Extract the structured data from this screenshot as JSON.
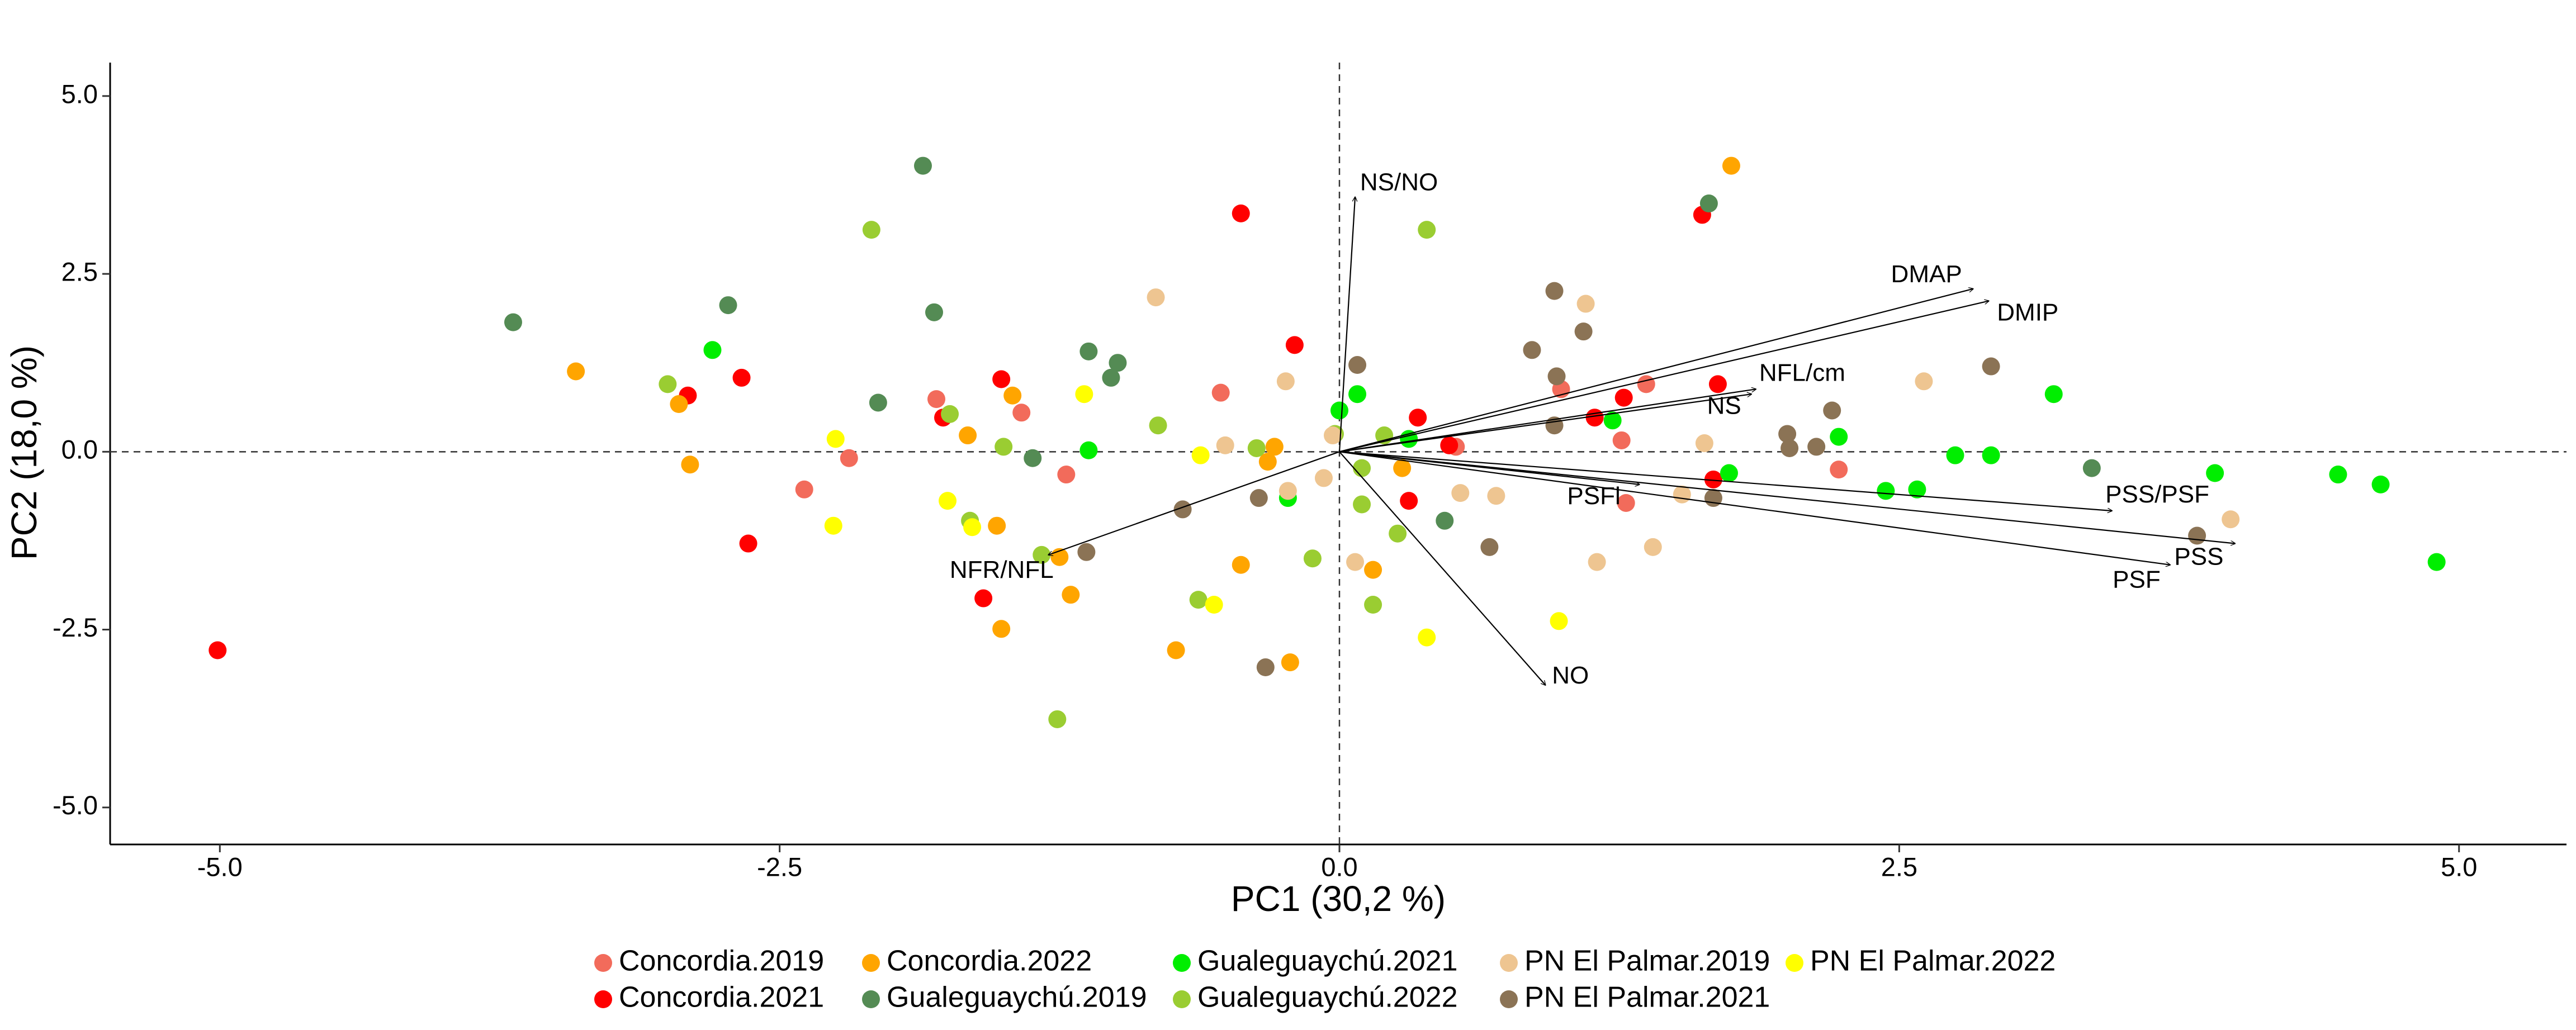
{
  "chart_data": {
    "type": "scatter",
    "x_label": "PC1 (30,2 %)",
    "y_label": "PC2 (18,0 %)",
    "xlim": [
      -5.49,
      5.48
    ],
    "ylim": [
      -5.52,
      5.47
    ],
    "xticks": [
      {
        "value": -5,
        "label": "-5.0"
      },
      {
        "value": -2.5,
        "label": "-2.5"
      },
      {
        "value": 0,
        "label": "0.0"
      },
      2.5,
      {
        "value": 5,
        "label": "5.0"
      }
    ],
    "yticks": [
      {
        "value": -5,
        "label": "-5.0"
      },
      {
        "value": -2.5,
        "label": "-2.5"
      },
      {
        "value": 0,
        "label": "0.0"
      },
      2.5,
      {
        "value": 5,
        "label": "5.0"
      }
    ],
    "series": [
      {
        "name": "Concordia.2019",
        "color": "#f26b5b",
        "x": [
          -1.8,
          -2.39,
          -2.19,
          -1.42,
          -1.22,
          -0.53,
          0.99,
          1.37,
          1.26,
          1.28,
          2.23,
          0.52
        ],
        "values": [
          0.74,
          -0.53,
          -0.09,
          0.55,
          -0.32,
          0.83,
          0.88,
          0.95,
          0.16,
          -0.72,
          -0.25,
          0.07
        ]
      },
      {
        "name": "Concordia.2021",
        "color": "#ff0000",
        "x": [
          -5.01,
          -2.91,
          -2.67,
          -2.64,
          -1.77,
          -1.51,
          -1.59,
          -0.44,
          -0.2,
          0.35,
          0.31,
          0.49,
          1.14,
          1.27,
          1.62,
          1.69,
          1.67
        ],
        "values": [
          -2.79,
          0.79,
          1.04,
          -1.29,
          0.48,
          1.02,
          -2.06,
          3.35,
          1.5,
          0.48,
          -0.69,
          0.09,
          0.48,
          0.76,
          3.33,
          0.95,
          -0.39
        ]
      },
      {
        "name": "Concordia.2022",
        "color": "#ffa500",
        "x": [
          -3.41,
          -2.95,
          -2.9,
          -1.66,
          -1.46,
          -1.53,
          -1.25,
          -1.51,
          -1.2,
          -0.73,
          -0.44,
          -0.29,
          -0.32,
          -0.22,
          0.28,
          0.15,
          1.75
        ],
        "values": [
          1.13,
          0.67,
          -0.18,
          0.23,
          0.79,
          -1.04,
          -1.48,
          -2.49,
          -2.01,
          -2.79,
          -1.59,
          0.07,
          -0.14,
          -2.96,
          -0.23,
          -1.66,
          4.02
        ]
      },
      {
        "name": "Gualeguaychú.2019",
        "color": "#548b54",
        "x": [
          -3.69,
          -2.73,
          -1.86,
          -1.81,
          -2.06,
          -1.37,
          -1.12,
          -0.99,
          -1.02,
          0.47,
          1.65,
          3.36
        ],
        "values": [
          1.82,
          2.06,
          4.02,
          1.96,
          0.69,
          -0.09,
          1.41,
          1.25,
          1.04,
          -0.97,
          3.49,
          -0.23
        ]
      },
      {
        "name": "Gualeguaychú.2021",
        "color": "#00ee00",
        "x": [
          -2.8,
          -1.12,
          -0.23,
          0.0,
          0.08,
          0.31,
          1.22,
          1.74,
          2.23,
          2.44,
          2.58,
          2.75,
          2.91,
          3.19,
          3.91,
          4.46,
          4.65,
          4.9
        ],
        "values": [
          1.43,
          0.02,
          -0.65,
          0.58,
          0.81,
          0.18,
          0.44,
          -0.3,
          0.21,
          -0.55,
          -0.53,
          -0.05,
          -0.05,
          0.81,
          -0.3,
          -0.32,
          -0.46,
          -1.55
        ]
      },
      {
        "name": "Gualeguaychú.2022",
        "color": "#9acd32",
        "x": [
          -2.09,
          -3.0,
          -1.74,
          -1.65,
          -1.5,
          -1.33,
          -1.26,
          -0.81,
          -0.63,
          -0.37,
          -0.12,
          -0.02,
          0.1,
          0.1,
          0.15,
          0.2,
          0.26,
          0.39
        ],
        "values": [
          3.12,
          0.95,
          0.53,
          -0.97,
          0.07,
          -1.45,
          -3.76,
          0.37,
          -2.08,
          0.05,
          -1.5,
          0.25,
          -0.23,
          -0.74,
          -2.15,
          0.23,
          -1.15,
          3.12
        ]
      },
      {
        "name": "PN El Palmar.2019",
        "color": "#eec591",
        "x": [
          -0.82,
          -0.51,
          -0.24,
          -0.07,
          -0.03,
          0.07,
          0.54,
          0.7,
          1.1,
          1.15,
          1.4,
          1.53,
          1.63,
          2.61,
          3.98,
          -0.23
        ],
        "values": [
          2.17,
          0.09,
          0.99,
          -0.37,
          0.23,
          -1.55,
          -0.58,
          -0.62,
          2.08,
          -1.55,
          -1.34,
          -0.6,
          0.12,
          0.99,
          -0.95,
          -0.55
        ]
      },
      {
        "name": "PN El Palmar.2021",
        "color": "#8b7355",
        "x": [
          -0.7,
          -1.13,
          -0.36,
          -0.33,
          0.08,
          0.86,
          0.96,
          0.97,
          1.09,
          0.96,
          0.67,
          1.67,
          2.0,
          2.01,
          2.13,
          2.2,
          2.91,
          3.83
        ],
        "values": [
          -0.81,
          -1.41,
          -0.65,
          -3.03,
          1.22,
          1.43,
          2.26,
          1.06,
          1.69,
          0.37,
          -1.34,
          -0.65,
          0.25,
          0.05,
          0.07,
          0.58,
          1.2,
          -1.18
        ]
      },
      {
        "name": "PN El Palmar.2022",
        "color": "#ffff00",
        "x": [
          -2.25,
          -2.26,
          -1.75,
          -1.64,
          -1.14,
          -0.62,
          -0.56,
          0.39,
          0.98
        ],
        "values": [
          0.18,
          -1.04,
          -0.69,
          -1.06,
          0.81,
          -0.05,
          -2.15,
          -2.61,
          -2.38
        ]
      }
    ],
    "loadings": [
      {
        "label": "NS/NO",
        "x": 0.07,
        "y": 3.58
      },
      {
        "label": "DMAP",
        "x": 2.83,
        "y": 2.29
      },
      {
        "label": "DMIP",
        "x": 2.9,
        "y": 2.12
      },
      {
        "label": "NFL/cm",
        "x": 1.86,
        "y": 0.88
      },
      {
        "label": "NS",
        "x": 1.84,
        "y": 0.81
      },
      {
        "label": "PSFl",
        "x": 1.34,
        "y": -0.46
      },
      {
        "label": "PSS/PSF",
        "x": 3.45,
        "y": -0.83
      },
      {
        "label": "PSS",
        "x": 4.0,
        "y": -1.29
      },
      {
        "label": "PSF",
        "x": 3.71,
        "y": -1.59
      },
      {
        "label": "NFR/NFL",
        "x": -1.3,
        "y": -1.45
      },
      {
        "label": "NO",
        "x": 0.92,
        "y": -3.28
      }
    ]
  }
}
